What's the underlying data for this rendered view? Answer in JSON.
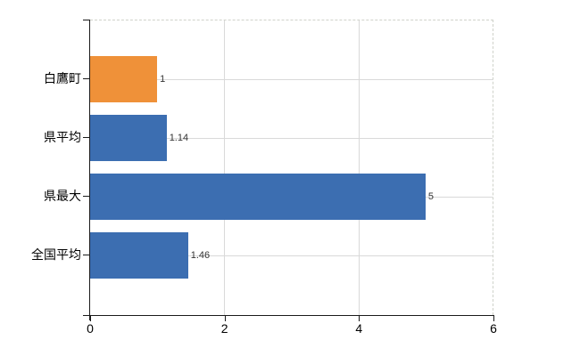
{
  "chart_data": {
    "type": "bar",
    "orientation": "horizontal",
    "title": "",
    "xlabel": "",
    "ylabel": "",
    "categories": [
      "白鷹町",
      "県平均",
      "県最大",
      "全国平均"
    ],
    "values": [
      1,
      1.14,
      5,
      1.46
    ],
    "value_labels": [
      "1",
      "1.14",
      "5",
      "1.46"
    ],
    "bar_colors": [
      "#ef9139",
      "#3c6eb1",
      "#3c6eb1",
      "#3c6eb1"
    ],
    "xlim": [
      0,
      6
    ],
    "x_ticks": [
      "0",
      "2",
      "4",
      "6"
    ],
    "grid": "on",
    "legend": "none",
    "colors": {
      "highlight_bar": "#ef9139",
      "default_bar": "#3c6eb1",
      "gridline": "#d9d9d9",
      "axis": "#1a1a1a",
      "value_text": "#333333",
      "background": "#ffffff"
    }
  }
}
